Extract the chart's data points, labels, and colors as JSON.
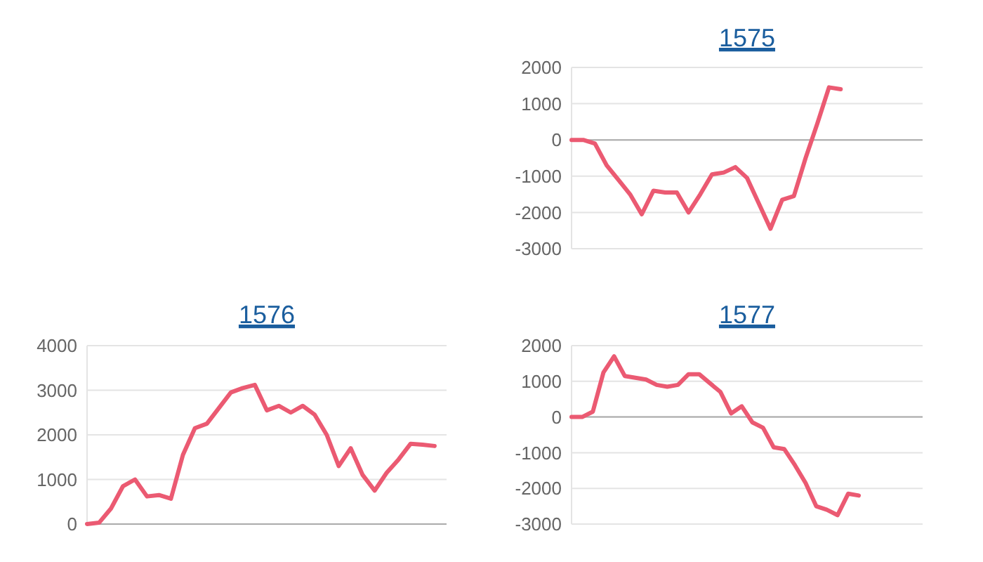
{
  "chart_data": [
    {
      "type": "line",
      "title": "1575",
      "categories": [
        null,
        null,
        null,
        null,
        null,
        null,
        null,
        null,
        null,
        null,
        null,
        null,
        null,
        null,
        null,
        null,
        null,
        null,
        null,
        null,
        null,
        null,
        null,
        null,
        null,
        null,
        null,
        null,
        null,
        null,
        null
      ],
      "series": [
        {
          "color": "#eb5a72",
          "values": [
            0,
            0,
            -100,
            -700,
            -1100,
            -1500,
            -2050,
            -1400,
            -1450,
            -1450,
            -2000,
            -1500,
            -950,
            -900,
            -750,
            -1050,
            -1750,
            -2450,
            -1650,
            -1550,
            -500,
            450,
            1450,
            1400,
            null,
            null,
            null,
            null,
            null,
            null,
            null
          ]
        }
      ],
      "ylim": [
        -3000,
        2000
      ],
      "yticks": [
        -3000,
        -2000,
        -1000,
        0,
        1000,
        2000
      ],
      "grid": "y"
    },
    {
      "type": "line",
      "title": "1576",
      "categories": [
        null,
        null,
        null,
        null,
        null,
        null,
        null,
        null,
        null,
        null,
        null,
        null,
        null,
        null,
        null,
        null,
        null,
        null,
        null,
        null,
        null,
        null,
        null,
        null,
        null,
        null,
        null,
        null,
        null,
        null,
        null
      ],
      "series": [
        {
          "color": "#eb5a72",
          "values": [
            0,
            30,
            350,
            850,
            1000,
            620,
            650,
            570,
            1550,
            2150,
            2250,
            2600,
            2950,
            3050,
            3120,
            2550,
            2650,
            2500,
            2650,
            2450,
            2000,
            1300,
            1700,
            1100,
            750,
            1150,
            1450,
            1800,
            1780,
            1750,
            null
          ]
        }
      ],
      "ylim": [
        0,
        4000
      ],
      "yticks": [
        0,
        1000,
        2000,
        3000,
        4000
      ],
      "grid": "y"
    },
    {
      "type": "line",
      "title": "1577",
      "categories": [
        null,
        null,
        null,
        null,
        null,
        null,
        null,
        null,
        null,
        null,
        null,
        null,
        null,
        null,
        null,
        null,
        null,
        null,
        null,
        null,
        null,
        null,
        null,
        null,
        null,
        null,
        null,
        null,
        null,
        null,
        null,
        null,
        null,
        null
      ],
      "series": [
        {
          "color": "#eb5a72",
          "values": [
            0,
            0,
            150,
            1250,
            1700,
            1150,
            1100,
            1050,
            900,
            850,
            900,
            1200,
            1200,
            950,
            700,
            100,
            300,
            -150,
            -300,
            -850,
            -900,
            -1350,
            -1850,
            -2500,
            -2600,
            -2750,
            -2150,
            -2200,
            null,
            null,
            null,
            null,
            null,
            null
          ]
        }
      ],
      "ylim": [
        -3000,
        2000
      ],
      "yticks": [
        -3000,
        -2000,
        -1000,
        0,
        1000,
        2000
      ],
      "grid": "y"
    }
  ]
}
